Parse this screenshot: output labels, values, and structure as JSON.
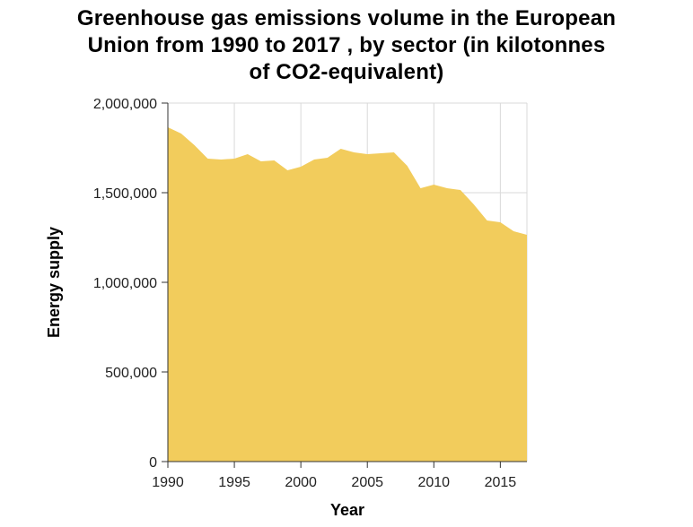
{
  "title_lines": [
    "Greenhouse gas emissions volume in the European",
    "Union from 1990 to 2017 , by sector (in kilotonnes",
    "of CO2-equivalent)"
  ],
  "chart_data": {
    "type": "area",
    "title": "Greenhouse gas emissions volume in the European Union from 1990 to 2017 , by sector (in kilotonnes of CO2-equivalent)",
    "xlabel": "Year",
    "ylabel": "Energy supply",
    "xlim": [
      1990,
      2017
    ],
    "ylim": [
      0,
      2000000
    ],
    "x_ticks": [
      1990,
      1995,
      2000,
      2005,
      2010,
      2015
    ],
    "x_tick_labels": [
      "1990",
      "1995",
      "2000",
      "2005",
      "2010",
      "2015"
    ],
    "y_ticks": [
      0,
      500000,
      1000000,
      1500000,
      2000000
    ],
    "y_tick_labels": [
      "0",
      "500,000",
      "1,000,000",
      "1,500,000",
      "2,000,000"
    ],
    "grid": true,
    "fill_color": "#f2cc5c",
    "x": [
      1990,
      1991,
      1992,
      1993,
      1994,
      1995,
      1996,
      1997,
      1998,
      1999,
      2000,
      2001,
      2002,
      2003,
      2004,
      2005,
      2006,
      2007,
      2008,
      2009,
      2010,
      2011,
      2012,
      2013,
      2014,
      2015,
      2016,
      2017
    ],
    "y": [
      1865000,
      1830000,
      1765000,
      1690000,
      1685000,
      1690000,
      1715000,
      1675000,
      1680000,
      1625000,
      1645000,
      1685000,
      1695000,
      1745000,
      1725000,
      1715000,
      1720000,
      1725000,
      1650000,
      1525000,
      1545000,
      1525000,
      1515000,
      1435000,
      1345000,
      1335000,
      1285000,
      1265000
    ]
  }
}
